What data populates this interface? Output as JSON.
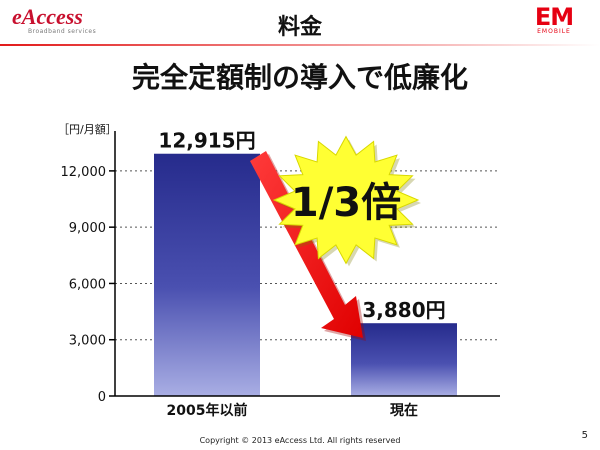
{
  "header": {
    "brand": "eAccess",
    "brand_tagline": "Broadband services",
    "title": "料金",
    "logo_right": "EM",
    "logo_right_sub": "EMOBILE"
  },
  "headline": "完全定額制の導入で低廉化",
  "chart_data": {
    "type": "bar",
    "unit_label": "［円/月額］",
    "categories": [
      "2005年以前",
      "現在"
    ],
    "values": [
      12915,
      3880
    ],
    "value_labels": [
      "12,915円",
      "3,880円"
    ],
    "yticks": [
      0,
      3000,
      6000,
      9000,
      12000
    ],
    "ytick_labels": [
      "0",
      "3,000",
      "6,000",
      "9,000",
      "12,000"
    ],
    "ylim": [
      0,
      13700
    ],
    "grid": true,
    "bar_color": "#2b3291",
    "annotation": "1/3倍",
    "annotation_color": "#ffff33"
  },
  "footer": "Copyright © 2013 eAccess Ltd. All rights reserved",
  "page_number": "5"
}
